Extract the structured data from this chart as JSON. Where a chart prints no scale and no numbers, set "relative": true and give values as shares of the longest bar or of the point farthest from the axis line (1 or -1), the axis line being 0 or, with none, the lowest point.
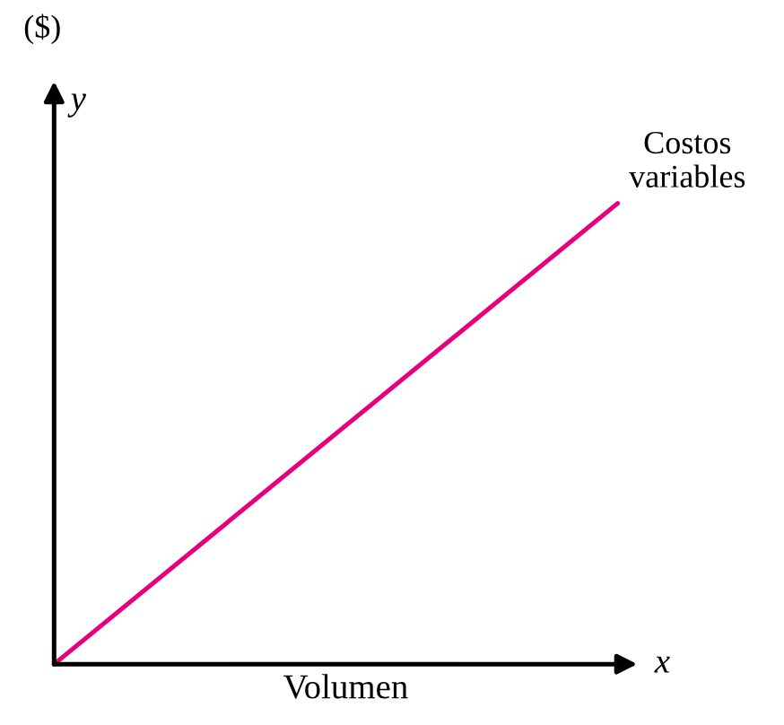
{
  "chart_data": {
    "type": "line",
    "relative": true,
    "xlabel": "Volumen",
    "ylabel": "($)",
    "annotations": [
      "y",
      "x"
    ],
    "categories": [
      null,
      null
    ],
    "series": [
      {
        "name": "Costos variables",
        "color": "#e6007e",
        "values": [
          0,
          1
        ]
      }
    ]
  }
}
